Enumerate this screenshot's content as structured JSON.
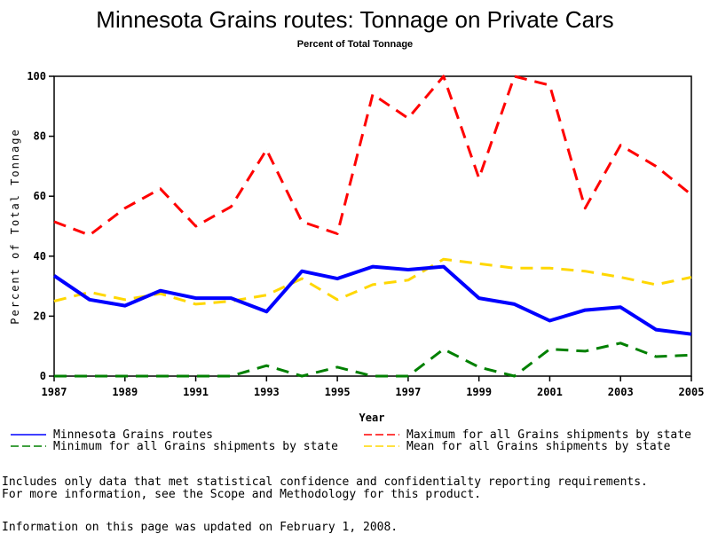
{
  "chart_data": {
    "type": "line",
    "title": "Minnesota Grains routes: Tonnage on Private Cars",
    "subtitle": "Percent of Total Tonnage",
    "xlabel": "Year",
    "ylabel": "Percent of Total Tonnage",
    "x": [
      1987,
      1988,
      1989,
      1990,
      1991,
      1992,
      1993,
      1994,
      1995,
      1996,
      1997,
      1998,
      1999,
      2000,
      2001,
      2002,
      2003,
      2004,
      2005
    ],
    "xticks": [
      "1987",
      "1989",
      "1991",
      "1993",
      "1995",
      "1997",
      "1999",
      "2001",
      "2003",
      "2005"
    ],
    "xtick_values": [
      1987,
      1989,
      1991,
      1993,
      1995,
      1997,
      1999,
      2001,
      2003,
      2005
    ],
    "yticks": [
      "0",
      "20",
      "40",
      "60",
      "80",
      "100"
    ],
    "ytick_values": [
      0,
      20,
      40,
      60,
      80,
      100
    ],
    "xlim": [
      1987,
      2005
    ],
    "ylim": [
      0,
      100
    ],
    "grid": false,
    "legend_placement": "bottom",
    "series": [
      {
        "name": "Minnesota Grains routes",
        "color": "#0000ff",
        "style": "solid",
        "values": [
          33.5,
          25.5,
          23.5,
          28.5,
          26,
          26,
          21.5,
          35,
          32.5,
          36.5,
          35.5,
          36.5,
          26,
          24,
          18.5,
          22,
          23,
          15.5,
          14
        ]
      },
      {
        "name": "Maximum for all Grains shipments by state",
        "color": "#ff0000",
        "style": "dashed",
        "values": [
          51.5,
          47,
          56,
          62.5,
          50,
          56.5,
          75.5,
          51.5,
          47.5,
          94,
          86,
          100,
          66,
          100,
          97,
          56,
          77,
          70,
          60.5
        ]
      },
      {
        "name": "Minimum for all Grains shipments by state",
        "color": "#008000",
        "style": "dashed",
        "values": [
          0,
          0,
          0,
          0,
          0,
          0,
          3.5,
          0,
          3,
          0,
          0,
          9,
          3,
          0,
          9,
          8.3,
          11,
          6.5,
          7
        ]
      },
      {
        "name": "Mean for all Grains shipments by state",
        "color": "#ffd700",
        "style": "dashed",
        "values": [
          25,
          28,
          25.5,
          27.5,
          24,
          25,
          27,
          32.5,
          25.5,
          30.5,
          32,
          39,
          37.5,
          36,
          36,
          35,
          33,
          30.5,
          33
        ]
      }
    ]
  },
  "notes": {
    "line1": "Includes only data that met statistical confidence and confidentialty reporting requirements.",
    "line2": "For more information, see the Scope and Methodology for this product.",
    "updated": "Information on this page was updated on February 1, 2008."
  }
}
